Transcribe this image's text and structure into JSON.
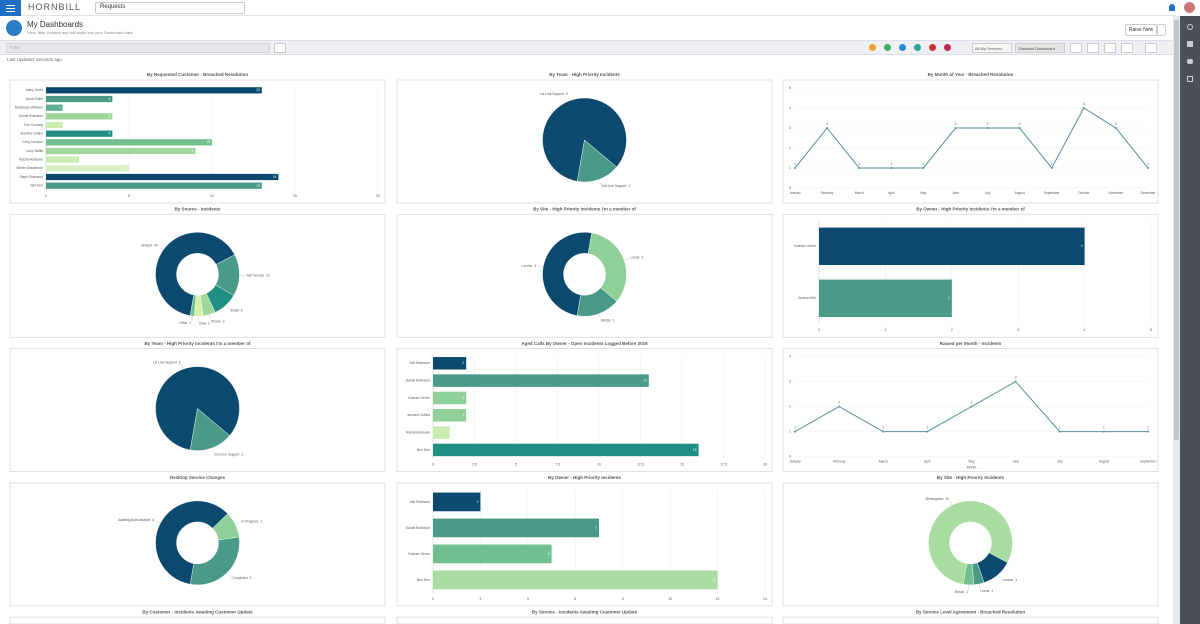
{
  "header": {
    "logo": "HORNBILL",
    "search_scope": "Requests",
    "title": "My Dashboards",
    "subtitle": "View, filter, rename and drill down into your Dashboard data",
    "raise_button": "Raise New"
  },
  "toolbar": {
    "filter_placeholder": "Filter",
    "services_dropdown": "All My Services",
    "dashboard_dropdown": "Standard Dashboard",
    "last_updated": "Last Updated: seconds ago"
  },
  "chart_data": [
    {
      "type": "hbar",
      "title": "By Requested Customer - Breached Resolution",
      "categories": [
        "Mary Jones",
        "Anna Smith",
        "Rosemary Wheeler",
        "Daniel Robinson",
        "Tom Cushing",
        "Jasmine Collins",
        "Greg Johnson",
        "Lucy Wallis",
        "Rachel Andrews",
        "Steven Blackmore",
        "Steph Robinson",
        "Neil Kerr"
      ],
      "values": [
        13,
        4,
        1,
        4,
        1,
        4,
        10,
        9,
        2,
        5,
        14,
        13
      ],
      "colors": [
        "#0b4a6e",
        "#4a9a8a",
        "#5fae94",
        "#9fd69a",
        "#c8ecb0",
        "#1f8f84",
        "#6fbf8f",
        "#9fd69a",
        "#c8ecb0",
        "#d8f0c4",
        "#0b4a6e",
        "#4a9a8a"
      ],
      "xlim": [
        0,
        20
      ],
      "xticks": [
        0,
        5,
        10,
        15,
        20
      ]
    },
    {
      "type": "pie",
      "title": "By Team - High Priority Incidents",
      "categories": [
        "1st Line Support",
        "2nd Line Support"
      ],
      "values": [
        5,
        1
      ],
      "colors": [
        "#0b4a6e",
        "#4a9a8a"
      ]
    },
    {
      "type": "line",
      "title": "By Month of Year - Breached Resolution",
      "categories": [
        "January",
        "February",
        "March",
        "April",
        "May",
        "June",
        "July",
        "August",
        "September",
        "October",
        "November",
        "December"
      ],
      "values": [
        1,
        3,
        1,
        1,
        1,
        3,
        3,
        3,
        1,
        4,
        3,
        1
      ],
      "color": "#5a8fa0",
      "ylim": [
        0,
        5
      ],
      "yticks": [
        0,
        1,
        2,
        3,
        4,
        5
      ]
    },
    {
      "type": "donut",
      "title": "By Source - Incidents",
      "categories": [
        "Analyst",
        "Self Service",
        "Email",
        "Phone",
        "Chat",
        "Other"
      ],
      "values": [
        40,
        10,
        6,
        3,
        2,
        1
      ],
      "colors": [
        "#0b4a6e",
        "#4a9a8a",
        "#1f8f84",
        "#9fd69a",
        "#d8f0a8",
        "#6fbf8f"
      ]
    },
    {
      "type": "donut",
      "title": "By Site - High Priority Incidents I'm a member of",
      "categories": [
        "London",
        "Leeds",
        "Bristol"
      ],
      "values": [
        3,
        2,
        1
      ],
      "colors": [
        "#0b4a6e",
        "#8fcf98",
        "#4a9a8a"
      ]
    },
    {
      "type": "hbar",
      "title": "By Owner - High Priority Incidents I'm a member of",
      "categories": [
        "Graham Green",
        "Andrew Kirk"
      ],
      "values": [
        4,
        2
      ],
      "colors": [
        "#0b4a6e",
        "#4a9a8a"
      ],
      "xlim": [
        0,
        5
      ],
      "xticks": [
        0,
        1,
        2,
        3,
        4,
        5
      ]
    },
    {
      "type": "pie",
      "title": "By Team - High Priority Incidents I'm a member of",
      "categories": [
        "1st Line Support",
        "2nd Line Support"
      ],
      "values": [
        5,
        1
      ],
      "colors": [
        "#0b4a6e",
        "#4a9a8a"
      ]
    },
    {
      "type": "hbar",
      "title": "Aged Calls By Owner - Open Incidents Logged Before 2016",
      "categories": [
        "Neil Robinson",
        "Daniel Robinson",
        "Graham Green",
        "Jasmine Collins",
        "Rachel Andrews",
        "Ben Kerr"
      ],
      "values": [
        2,
        13,
        2,
        2,
        1,
        16
      ],
      "colors": [
        "#0b4a6e",
        "#4a9a8a",
        "#8fcf98",
        "#8fcf98",
        "#c8ecb0",
        "#1f8f84"
      ],
      "xlim": [
        0,
        20
      ],
      "xticks": [
        0,
        2.5,
        5,
        7.5,
        10,
        12.5,
        15,
        17.5,
        20
      ]
    },
    {
      "type": "line",
      "title": "Raised per Month - Incidents",
      "categories": [
        "January",
        "February",
        "March",
        "April",
        "May",
        "June",
        "July",
        "August",
        "September"
      ],
      "values": [
        1,
        2,
        1,
        1,
        2,
        3,
        1,
        1,
        1
      ],
      "color": "#5a8fa0",
      "ylim": [
        0,
        4
      ],
      "yticks": [
        0,
        1,
        2,
        3,
        4
      ],
      "xlabel": "Month"
    },
    {
      "type": "donut",
      "title": "Desktop Service Changes",
      "categories": [
        "Awaiting Authorisation",
        "In Progress",
        "Completed"
      ],
      "values": [
        6,
        1,
        3
      ],
      "colors": [
        "#0b4a6e",
        "#8fcf98",
        "#4a9a8a"
      ]
    },
    {
      "type": "hbar",
      "title": "By Owner - High Priority Incidents",
      "categories": [
        "Neil Robinson",
        "Daniel Robinson",
        "Graham Green",
        "Ben Kerr"
      ],
      "values": [
        2,
        7,
        5,
        12
      ],
      "colors": [
        "#0b4a6e",
        "#4a9a8a",
        "#6fbf8f",
        "#a8dca0"
      ],
      "xlim": [
        0,
        14
      ],
      "xticks": [
        0,
        2,
        4,
        6,
        8,
        10,
        12,
        14
      ]
    },
    {
      "type": "donut",
      "title": "By Site - High Priority Incidents",
      "categories": [
        "Birmingham",
        "London",
        "Leeds",
        "Bristol"
      ],
      "values": [
        20,
        3,
        1,
        1
      ],
      "colors": [
        "#a8dca0",
        "#0b4a6e",
        "#4a9a8a",
        "#6fbf8f"
      ]
    }
  ],
  "partial_widgets": [
    {
      "title": "By Customer - Incidents Awaiting Customer Update"
    },
    {
      "title": "By Service - Incidents Awaiting Customer Update"
    },
    {
      "title": "By Service Level Agreement - Breached Resolution"
    }
  ]
}
